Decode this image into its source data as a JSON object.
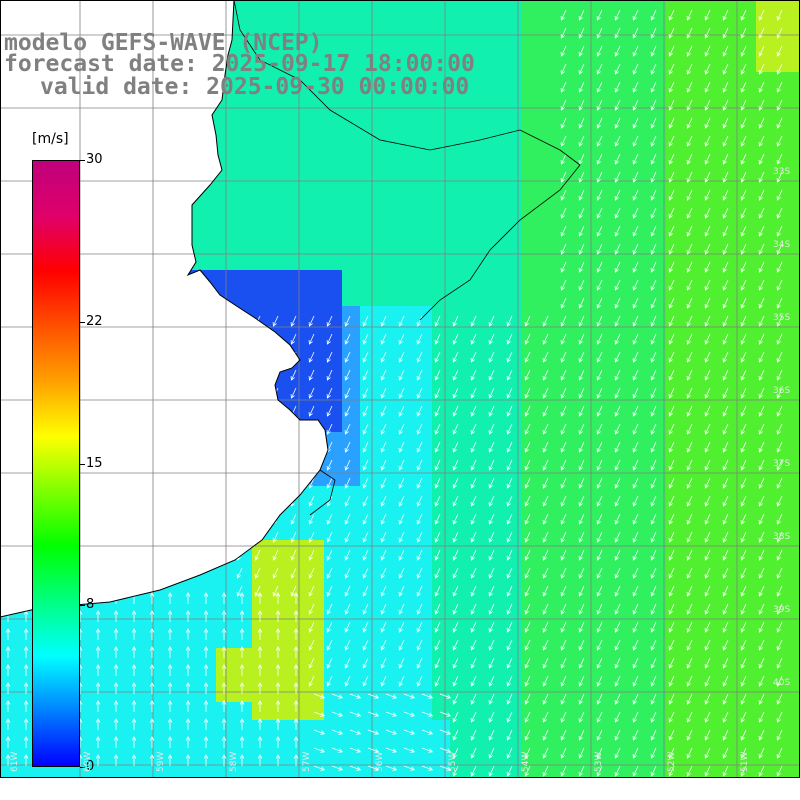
{
  "title": {
    "line1": "modelo GEFS-WAVE (NCEP)",
    "line2": "forecast date: 2025-09-17 18:00:00",
    "line3": "valid date: 2025-09-30 00:00:00"
  },
  "colorbar": {
    "unit": "[m/s]",
    "min": 0,
    "max": 30,
    "ticks": [
      "30",
      "22",
      "15",
      "8",
      "0"
    ],
    "tick_values": [
      30,
      22,
      15,
      8,
      0
    ],
    "colors": [
      "#0000ff",
      "#0080ff",
      "#00ffff",
      "#00ff80",
      "#00ff00",
      "#80ff00",
      "#ffff00",
      "#ffa000",
      "#ff5000",
      "#ff0000",
      "#e0006a",
      "#c0007c"
    ]
  },
  "map": {
    "field_colors": {
      "dark_blue": "#1a4ff0",
      "blue": "#2aa0ff",
      "cyan": "#19f2f0",
      "teal": "#12f0b0",
      "green": "#30f060",
      "bright_green": "#50f030",
      "yellow_green": "#b8f020"
    },
    "land_color": "#ffffff",
    "coastline_color": "#000000",
    "grid_color": "#808080",
    "arrow_color": "#ffffff",
    "lat_labels": [
      "33S",
      "34S",
      "35S",
      "36S",
      "37S",
      "38S",
      "39S",
      "40S"
    ],
    "lon_labels": [
      "61W",
      "60W",
      "59W",
      "58W",
      "57W",
      "56W",
      "55W",
      "54W",
      "53W",
      "52W",
      "51W"
    ]
  }
}
